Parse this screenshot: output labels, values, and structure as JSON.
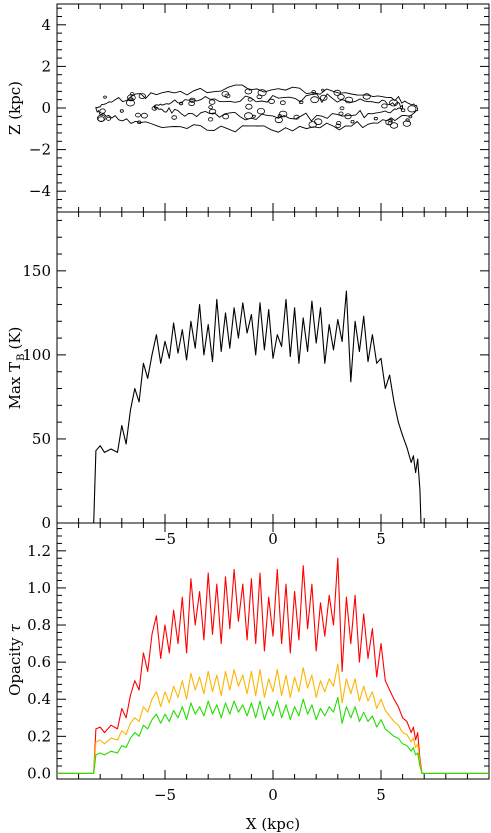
{
  "chart_data": [
    {
      "type": "contour",
      "ylabel": "Z (kpc)",
      "xlim": [
        -10,
        10
      ],
      "ylim": [
        -5,
        5
      ],
      "yticks": [
        -4,
        -2,
        0,
        2,
        4
      ],
      "yticklabels": [
        "−4",
        "−2",
        "0",
        "2",
        "4"
      ],
      "xticks": [
        -5,
        0,
        5
      ],
      "grid": false,
      "contours": [
        {
          "name": "outer",
          "x_range": [
            -8.2,
            6.7
          ],
          "z_range": [
            -1.0,
            0.9
          ]
        },
        {
          "name": "inner",
          "x_range": [
            -5.5,
            6.0
          ],
          "z_range": [
            -0.4,
            0.5
          ]
        }
      ]
    },
    {
      "type": "line",
      "ylabel_main": "Max T",
      "ylabel_sub": "B",
      "ylabel_unit": "(K)",
      "xlim": [
        -10,
        10
      ],
      "ylim": [
        0,
        185
      ],
      "yticks": [
        0,
        50,
        100,
        150
      ],
      "yticklabels": [
        "0",
        "50",
        "100",
        "150"
      ],
      "xticks": [
        -5,
        0,
        5
      ],
      "xticklabels": [
        "−5",
        "0",
        "5"
      ],
      "grid": false,
      "series": [
        {
          "color": "#000000",
          "x": [
            -8.3,
            -8.2,
            -8.0,
            -7.8,
            -7.5,
            -7.2,
            -7.0,
            -6.8,
            -6.6,
            -6.4,
            -6.2,
            -6.0,
            -5.8,
            -5.6,
            -5.4,
            -5.2,
            -5.0,
            -4.8,
            -4.6,
            -4.4,
            -4.2,
            -4.0,
            -3.8,
            -3.6,
            -3.4,
            -3.2,
            -3.0,
            -2.8,
            -2.6,
            -2.4,
            -2.2,
            -2.0,
            -1.8,
            -1.6,
            -1.4,
            -1.2,
            -1.0,
            -0.8,
            -0.6,
            -0.4,
            -0.2,
            0.0,
            0.2,
            0.4,
            0.6,
            0.8,
            1.0,
            1.2,
            1.4,
            1.6,
            1.8,
            2.0,
            2.2,
            2.4,
            2.6,
            2.8,
            3.0,
            3.2,
            3.4,
            3.6,
            3.8,
            4.0,
            4.2,
            4.4,
            4.6,
            4.8,
            5.0,
            5.2,
            5.4,
            5.6,
            5.8,
            6.0,
            6.2,
            6.4,
            6.5,
            6.6,
            6.7,
            6.8,
            6.85
          ],
          "y": [
            0,
            43,
            46,
            42,
            44,
            42,
            58,
            47,
            67,
            80,
            72,
            95,
            86,
            100,
            112,
            95,
            108,
            98,
            119,
            101,
            115,
            97,
            120,
            104,
            130,
            100,
            118,
            96,
            133,
            102,
            125,
            104,
            128,
            110,
            131,
            113,
            124,
            100,
            131,
            103,
            127,
            98,
            112,
            105,
            133,
            99,
            128,
            95,
            122,
            102,
            132,
            107,
            128,
            95,
            118,
            103,
            121,
            108,
            138,
            84,
            120,
            102,
            123,
            96,
            112,
            95,
            98,
            80,
            88,
            72,
            60,
            52,
            45,
            36,
            40,
            30,
            38,
            20,
            0
          ]
        }
      ]
    },
    {
      "type": "line",
      "ylabel_main": "Opacity",
      "ylabel_sym": "τ",
      "xlabel": "X (kpc)",
      "xlim": [
        -10,
        10
      ],
      "ylim": [
        -0.03,
        1.35
      ],
      "yticks": [
        0.0,
        0.2,
        0.4,
        0.6,
        0.8,
        1.0,
        1.2
      ],
      "yticklabels": [
        "0.0",
        "0.2",
        "0.4",
        "0.6",
        "0.8",
        "1.0",
        "1.2"
      ],
      "xticks": [
        -5,
        0,
        5
      ],
      "xticklabels": [
        "−5",
        "0",
        "5"
      ],
      "grid": false,
      "series": [
        {
          "color": "#ff0000",
          "x": [
            -10,
            -8.4,
            -8.3,
            -8.2,
            -8.0,
            -7.8,
            -7.5,
            -7.2,
            -7.0,
            -6.8,
            -6.6,
            -6.4,
            -6.2,
            -6.0,
            -5.8,
            -5.6,
            -5.4,
            -5.2,
            -5.0,
            -4.8,
            -4.6,
            -4.4,
            -4.2,
            -4.0,
            -3.8,
            -3.6,
            -3.4,
            -3.2,
            -3.0,
            -2.8,
            -2.6,
            -2.4,
            -2.2,
            -2.0,
            -1.8,
            -1.6,
            -1.4,
            -1.2,
            -1.0,
            -0.8,
            -0.6,
            -0.4,
            -0.2,
            0.0,
            0.2,
            0.4,
            0.6,
            0.8,
            1.0,
            1.2,
            1.4,
            1.6,
            1.8,
            2.0,
            2.2,
            2.4,
            2.6,
            2.8,
            3.0,
            3.2,
            3.4,
            3.6,
            3.8,
            4.0,
            4.2,
            4.4,
            4.6,
            4.8,
            5.0,
            5.2,
            5.4,
            5.6,
            5.8,
            6.0,
            6.2,
            6.4,
            6.5,
            6.6,
            6.7,
            6.8,
            6.9,
            10
          ],
          "y": [
            0,
            0,
            0,
            0.24,
            0.25,
            0.22,
            0.26,
            0.24,
            0.35,
            0.3,
            0.42,
            0.5,
            0.45,
            0.65,
            0.55,
            0.75,
            0.85,
            0.62,
            0.8,
            0.65,
            0.88,
            0.7,
            0.95,
            0.65,
            1.05,
            0.8,
            0.98,
            0.72,
            1.08,
            0.75,
            1.02,
            0.7,
            1.06,
            0.78,
            1.1,
            0.82,
            1.02,
            0.72,
            1.05,
            0.7,
            1.08,
            0.66,
            0.95,
            0.74,
            1.1,
            0.7,
            1.02,
            0.65,
            0.98,
            0.72,
            1.12,
            0.78,
            1.02,
            0.66,
            0.92,
            0.74,
            0.96,
            0.8,
            1.16,
            0.55,
            0.95,
            0.7,
            0.96,
            0.6,
            0.86,
            0.62,
            0.78,
            0.52,
            0.7,
            0.5,
            0.45,
            0.4,
            0.36,
            0.3,
            0.28,
            0.22,
            0.25,
            0.18,
            0.22,
            0.08,
            0,
            0
          ]
        },
        {
          "color": "#ffb400",
          "x": [
            -10,
            -8.4,
            -8.3,
            -8.2,
            -8.0,
            -7.8,
            -7.5,
            -7.2,
            -7.0,
            -6.8,
            -6.6,
            -6.4,
            -6.2,
            -6.0,
            -5.8,
            -5.6,
            -5.4,
            -5.2,
            -5.0,
            -4.8,
            -4.6,
            -4.4,
            -4.2,
            -4.0,
            -3.8,
            -3.6,
            -3.4,
            -3.2,
            -3.0,
            -2.8,
            -2.6,
            -2.4,
            -2.2,
            -2.0,
            -1.8,
            -1.6,
            -1.4,
            -1.2,
            -1.0,
            -0.8,
            -0.6,
            -0.4,
            -0.2,
            0.0,
            0.2,
            0.4,
            0.6,
            0.8,
            1.0,
            1.2,
            1.4,
            1.6,
            1.8,
            2.0,
            2.2,
            2.4,
            2.6,
            2.8,
            3.0,
            3.2,
            3.4,
            3.6,
            3.8,
            4.0,
            4.2,
            4.4,
            4.6,
            4.8,
            5.0,
            5.2,
            5.4,
            5.6,
            5.8,
            6.0,
            6.2,
            6.4,
            6.5,
            6.6,
            6.7,
            6.8,
            6.9,
            10
          ],
          "y": [
            0,
            0,
            0,
            0.17,
            0.18,
            0.16,
            0.19,
            0.18,
            0.23,
            0.21,
            0.27,
            0.3,
            0.28,
            0.36,
            0.33,
            0.4,
            0.44,
            0.36,
            0.44,
            0.38,
            0.47,
            0.41,
            0.5,
            0.4,
            0.54,
            0.45,
            0.52,
            0.43,
            0.55,
            0.44,
            0.53,
            0.42,
            0.55,
            0.45,
            0.56,
            0.47,
            0.53,
            0.43,
            0.55,
            0.42,
            0.56,
            0.41,
            0.51,
            0.44,
            0.56,
            0.42,
            0.53,
            0.41,
            0.52,
            0.44,
            0.57,
            0.46,
            0.53,
            0.41,
            0.5,
            0.44,
            0.51,
            0.47,
            0.59,
            0.38,
            0.51,
            0.43,
            0.51,
            0.39,
            0.47,
            0.39,
            0.44,
            0.35,
            0.4,
            0.34,
            0.31,
            0.28,
            0.26,
            0.22,
            0.21,
            0.17,
            0.19,
            0.14,
            0.16,
            0.06,
            0,
            0
          ]
        },
        {
          "color": "#22dd00",
          "x": [
            -10,
            -8.4,
            -8.3,
            -8.2,
            -8.0,
            -7.8,
            -7.5,
            -7.2,
            -7.0,
            -6.8,
            -6.6,
            -6.4,
            -6.2,
            -6.0,
            -5.8,
            -5.6,
            -5.4,
            -5.2,
            -5.0,
            -4.8,
            -4.6,
            -4.4,
            -4.2,
            -4.0,
            -3.8,
            -3.6,
            -3.4,
            -3.2,
            -3.0,
            -2.8,
            -2.6,
            -2.4,
            -2.2,
            -2.0,
            -1.8,
            -1.6,
            -1.4,
            -1.2,
            -1.0,
            -0.8,
            -0.6,
            -0.4,
            -0.2,
            0.0,
            0.2,
            0.4,
            0.6,
            0.8,
            1.0,
            1.2,
            1.4,
            1.6,
            1.8,
            2.0,
            2.2,
            2.4,
            2.6,
            2.8,
            3.0,
            3.2,
            3.4,
            3.6,
            3.8,
            4.0,
            4.2,
            4.4,
            4.6,
            4.8,
            5.0,
            5.2,
            5.4,
            5.6,
            5.8,
            6.0,
            6.2,
            6.4,
            6.5,
            6.6,
            6.7,
            6.8,
            6.9,
            10
          ],
          "y": [
            0,
            0,
            0,
            0.1,
            0.11,
            0.1,
            0.12,
            0.11,
            0.15,
            0.14,
            0.19,
            0.22,
            0.2,
            0.26,
            0.24,
            0.29,
            0.32,
            0.27,
            0.32,
            0.28,
            0.34,
            0.3,
            0.36,
            0.29,
            0.38,
            0.32,
            0.36,
            0.31,
            0.39,
            0.32,
            0.37,
            0.3,
            0.38,
            0.32,
            0.39,
            0.33,
            0.37,
            0.31,
            0.38,
            0.3,
            0.39,
            0.29,
            0.36,
            0.31,
            0.39,
            0.3,
            0.37,
            0.29,
            0.36,
            0.31,
            0.4,
            0.32,
            0.37,
            0.29,
            0.35,
            0.31,
            0.36,
            0.33,
            0.41,
            0.27,
            0.36,
            0.3,
            0.36,
            0.28,
            0.33,
            0.28,
            0.31,
            0.25,
            0.29,
            0.24,
            0.22,
            0.2,
            0.19,
            0.16,
            0.15,
            0.12,
            0.14,
            0.1,
            0.11,
            0.04,
            0,
            0
          ]
        }
      ]
    }
  ]
}
